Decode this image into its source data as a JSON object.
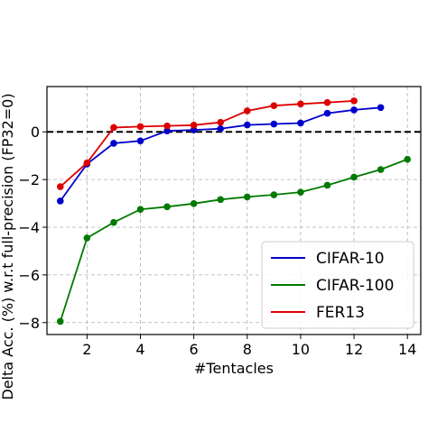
{
  "chart_data": {
    "type": "line",
    "xlabel": "#Tentacles",
    "ylabel": "Delta Acc. (%) w.r.t full-precision (FP32=0)",
    "xlim": [
      0.5,
      14.5
    ],
    "ylim": [
      -8.5,
      1.9
    ],
    "x_ticks": [
      2,
      4,
      6,
      8,
      10,
      12,
      14
    ],
    "y_ticks": [
      -8,
      -6,
      -4,
      -2,
      0
    ],
    "x_tick_labels": [
      "2",
      "4",
      "6",
      "8",
      "10",
      "12",
      "14"
    ],
    "y_tick_labels": [
      "−8",
      "−6",
      "−4",
      "−2",
      "0"
    ],
    "grid": true,
    "reference_line": {
      "y": 0,
      "style": "dashed",
      "color": "#000000"
    },
    "legend_position": "lower-right",
    "series": [
      {
        "name": "CIFAR-10",
        "color": "#0000cc",
        "x": [
          1,
          2,
          3,
          4,
          5,
          6,
          7,
          8,
          9,
          10,
          11,
          12,
          13
        ],
        "values": [
          -2.9,
          -1.35,
          -0.48,
          -0.38,
          0.04,
          0.08,
          0.13,
          0.29,
          0.33,
          0.37,
          0.78,
          0.92,
          1.02
        ]
      },
      {
        "name": "CIFAR-100",
        "color": "#007a00",
        "x": [
          1,
          2,
          3,
          4,
          5,
          6,
          7,
          8,
          9,
          10,
          11,
          12,
          13,
          14
        ],
        "values": [
          -7.95,
          -4.45,
          -3.8,
          -3.25,
          -3.14,
          -3.01,
          -2.84,
          -2.73,
          -2.64,
          -2.53,
          -2.24,
          -1.9,
          -1.58,
          -1.15
        ]
      },
      {
        "name": "FER13",
        "color": "#dd0000",
        "x": [
          1,
          2,
          3,
          4,
          5,
          6,
          7,
          8,
          9,
          10,
          11,
          12
        ],
        "values": [
          -2.3,
          -1.3,
          0.18,
          0.22,
          0.25,
          0.28,
          0.4,
          0.88,
          1.1,
          1.17,
          1.23,
          1.3
        ]
      }
    ]
  }
}
